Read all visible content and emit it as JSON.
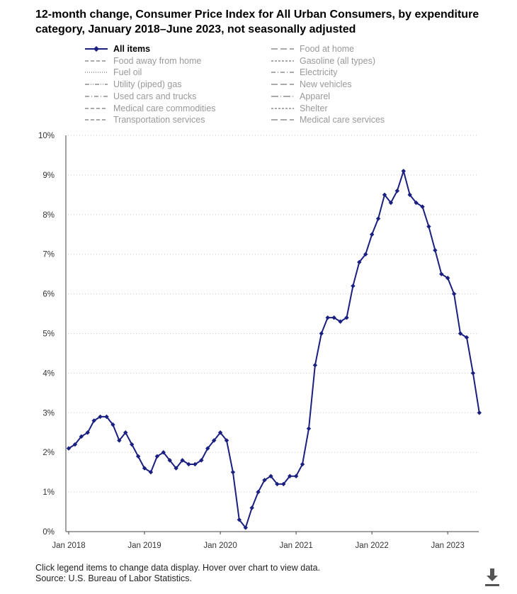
{
  "chart_data": {
    "type": "line",
    "title": "12-month change, Consumer Price Index for All Urban Consumers, by expenditure category, January 2018–June 2023, not seasonally adjusted",
    "legend": {
      "placement": "top",
      "items": [
        {
          "label": "All items",
          "active": true,
          "style": "solid-diamond"
        },
        {
          "label": "Food at home",
          "active": false,
          "style": "longdash"
        },
        {
          "label": "Food away from home",
          "active": false,
          "style": "dash"
        },
        {
          "label": "Gasoline (all types)",
          "active": false,
          "style": "shortdash"
        },
        {
          "label": "Fuel oil",
          "active": false,
          "style": "dot"
        },
        {
          "label": "Electricity",
          "active": false,
          "style": "dashdot"
        },
        {
          "label": "Utility (piped) gas",
          "active": false,
          "style": "dashdotdot"
        },
        {
          "label": "New vehicles",
          "active": false,
          "style": "longdash"
        },
        {
          "label": "Used cars and trucks",
          "active": false,
          "style": "dashdot"
        },
        {
          "label": "Apparel",
          "active": false,
          "style": "longdashdot"
        },
        {
          "label": "Medical care commodities",
          "active": false,
          "style": "dash"
        },
        {
          "label": "Shelter",
          "active": false,
          "style": "shortdash"
        },
        {
          "label": "Transportation services",
          "active": false,
          "style": "dash"
        },
        {
          "label": "Medical care services",
          "active": false,
          "style": "longdash"
        }
      ]
    },
    "x_ticks": [
      "Jan 2018",
      "Jan 2019",
      "Jan 2020",
      "Jan 2021",
      "Jan 2022",
      "Jan 2023"
    ],
    "y_ticks": [
      "0%",
      "1%",
      "2%",
      "3%",
      "4%",
      "5%",
      "6%",
      "7%",
      "8%",
      "9%",
      "10%"
    ],
    "ylim": [
      0,
      10
    ],
    "x_range": [
      "2018-01",
      "2023-06"
    ],
    "grid": {
      "y": "dotted",
      "x": false
    },
    "series": [
      {
        "name": "All items",
        "color": "#1a1f80",
        "x": [
          "2018-01",
          "2018-02",
          "2018-03",
          "2018-04",
          "2018-05",
          "2018-06",
          "2018-07",
          "2018-08",
          "2018-09",
          "2018-10",
          "2018-11",
          "2018-12",
          "2019-01",
          "2019-02",
          "2019-03",
          "2019-04",
          "2019-05",
          "2019-06",
          "2019-07",
          "2019-08",
          "2019-09",
          "2019-10",
          "2019-11",
          "2019-12",
          "2020-01",
          "2020-02",
          "2020-03",
          "2020-04",
          "2020-05",
          "2020-06",
          "2020-07",
          "2020-08",
          "2020-09",
          "2020-10",
          "2020-11",
          "2020-12",
          "2021-01",
          "2021-02",
          "2021-03",
          "2021-04",
          "2021-05",
          "2021-06",
          "2021-07",
          "2021-08",
          "2021-09",
          "2021-10",
          "2021-11",
          "2021-12",
          "2022-01",
          "2022-02",
          "2022-03",
          "2022-04",
          "2022-05",
          "2022-06",
          "2022-07",
          "2022-08",
          "2022-09",
          "2022-10",
          "2022-11",
          "2022-12",
          "2023-01",
          "2023-02",
          "2023-03",
          "2023-04",
          "2023-05",
          "2023-06"
        ],
        "values": [
          2.1,
          2.2,
          2.4,
          2.5,
          2.8,
          2.9,
          2.9,
          2.7,
          2.3,
          2.5,
          2.2,
          1.9,
          1.6,
          1.5,
          1.9,
          2.0,
          1.8,
          1.6,
          1.8,
          1.7,
          1.7,
          1.8,
          2.1,
          2.3,
          2.5,
          2.3,
          1.5,
          0.3,
          0.1,
          0.6,
          1.0,
          1.3,
          1.4,
          1.2,
          1.2,
          1.4,
          1.4,
          1.7,
          2.6,
          4.2,
          5.0,
          5.4,
          5.4,
          5.3,
          5.4,
          6.2,
          6.8,
          7.0,
          7.5,
          7.9,
          8.5,
          8.3,
          8.6,
          9.1,
          8.5,
          8.3,
          8.2,
          7.7,
          7.1,
          6.5,
          6.4,
          6.0,
          5.0,
          4.9,
          4.0,
          3.0
        ]
      }
    ]
  },
  "footer": {
    "instructions": "Click legend items to change data display. Hover over chart to view data.",
    "source": "Source: U.S. Bureau of Labor Statistics."
  },
  "icons": {
    "download": "download-icon"
  }
}
